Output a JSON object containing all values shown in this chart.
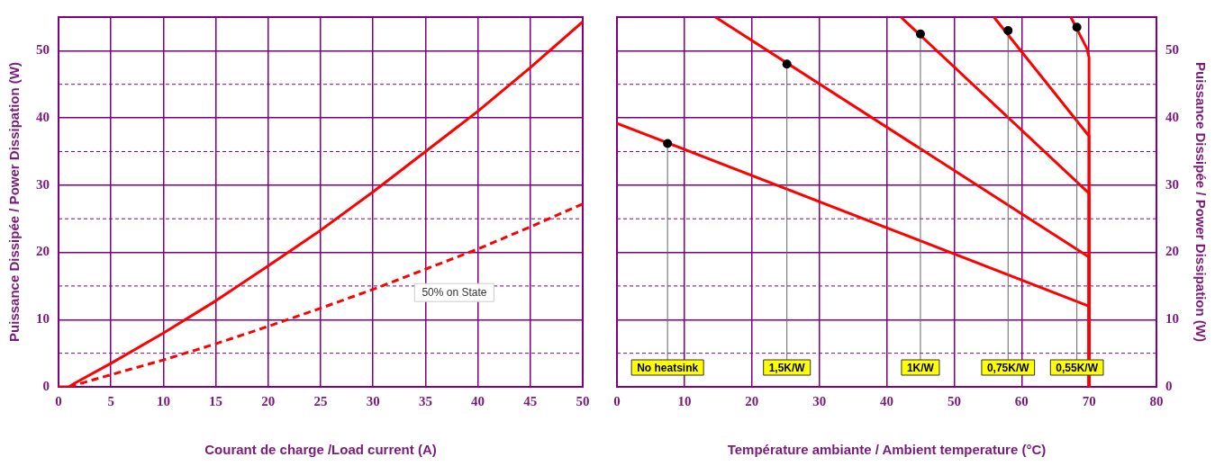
{
  "chart_data": [
    {
      "type": "line",
      "xlabel": "Courant de charge /Load current (A)",
      "ylabel": "Puissance Dissipée / Power Dissipation (W)",
      "xlim": [
        0,
        50
      ],
      "ylim": [
        0,
        55
      ],
      "xticks": [
        0,
        5,
        10,
        15,
        20,
        25,
        30,
        35,
        40,
        45,
        50
      ],
      "yticks": [
        0,
        {
          "value": 5,
          "label": null
        },
        10,
        {
          "value": 15,
          "label": null
        },
        20,
        {
          "value": 25,
          "label": null
        },
        30,
        {
          "value": 35,
          "label": null
        },
        40,
        {
          "value": 45,
          "label": null
        },
        50
      ],
      "grid": true,
      "legend": false,
      "marker": "none",
      "series": [
        {
          "color": "#ff0000",
          "line_style": "solid",
          "x": [
            0,
            1,
            1.5,
            5,
            10,
            15,
            20,
            25,
            30,
            35,
            40,
            45,
            50
          ],
          "values": [
            0,
            0,
            0.5,
            3.5,
            8,
            12.8,
            18,
            23.3,
            29,
            35,
            41,
            47.5,
            54.3
          ]
        },
        {
          "color": "#ff0000",
          "line_style": "dashed",
          "x": [
            1,
            5,
            10,
            15,
            20,
            25,
            30,
            35,
            40,
            45,
            50
          ],
          "values": [
            0,
            1.8,
            4,
            6.4,
            9,
            11.7,
            14.5,
            17.5,
            20.5,
            23.8,
            27.2
          ]
        }
      ],
      "annotations": [
        "50% on State"
      ]
    },
    {
      "type": "line",
      "xlabel": "Température ambiante / Ambient temperature (°C)",
      "ylabel": "Puissance Dissipée / Power Dissipation (W)",
      "xlim": [
        0,
        80
      ],
      "ylim": [
        0,
        55
      ],
      "xticks": [
        0,
        10,
        20,
        30,
        40,
        50,
        60,
        70,
        80
      ],
      "yticks": [
        0,
        {
          "value": 5,
          "label": null
        },
        10,
        {
          "value": 15,
          "label": null
        },
        20,
        {
          "value": 25,
          "label": null
        },
        30,
        {
          "value": 35,
          "label": null
        },
        40,
        {
          "value": 45,
          "label": null
        },
        50
      ],
      "grid": true,
      "legend": false,
      "marker": "none",
      "series": [
        {
          "color": "#ff0000",
          "x": [
            0,
            70,
            70
          ],
          "values": [
            39.2,
            12,
            0
          ]
        },
        {
          "color": "#ff0000",
          "x": [
            14.6,
            70,
            70
          ],
          "values": [
            55,
            19.3,
            0
          ]
        },
        {
          "color": "#ff0000",
          "x": [
            42.1,
            70,
            70
          ],
          "values": [
            55,
            28.8,
            0
          ]
        },
        {
          "color": "#ff0000",
          "x": [
            55.9,
            70,
            70
          ],
          "values": [
            55,
            37.3,
            0
          ]
        },
        {
          "color": "#ff0000",
          "x": [
            67.3,
            69.7,
            70,
            70
          ],
          "values": [
            55,
            50.3,
            49,
            0
          ]
        }
      ],
      "annotations": [
        {
          "text": "No heatsink",
          "x": 7.5,
          "y": 36.2
        },
        {
          "text": "1,5K/W",
          "x": 25.2,
          "y": 48
        },
        {
          "text": "1K/W",
          "x": 45,
          "y": 52.5
        },
        {
          "text": "0,75K/W",
          "x": 58,
          "y": 53
        },
        {
          "text": "0,55K/W",
          "x": 68.2,
          "y": 53.5
        }
      ]
    }
  ]
}
